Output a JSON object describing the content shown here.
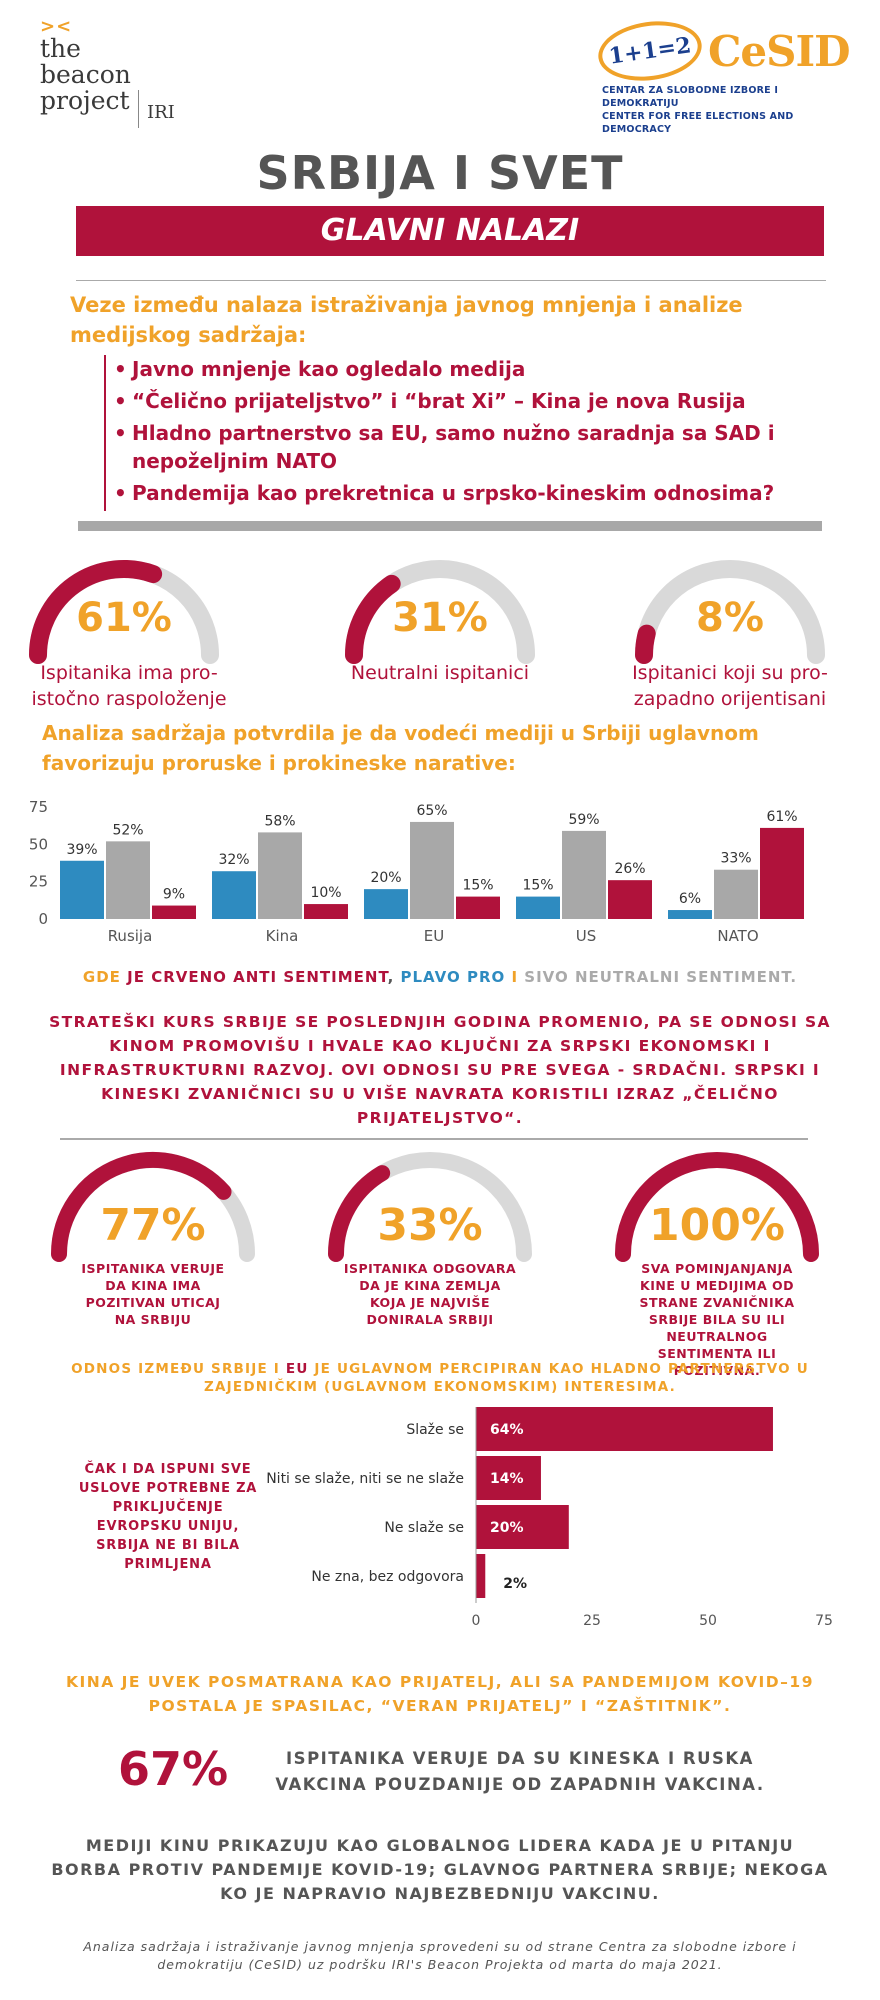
{
  "logos": {
    "beacon_marks": "><",
    "beacon_line1": "the",
    "beacon_line2": "beacon",
    "beacon_line3": "project",
    "iri": "IRI",
    "cesid_oval": "1+1=2",
    "cesid_name": "CeSID",
    "cesid_sub1": "CENTAR ZA SLOBODNE IZBORE I DEMOKRATIJU",
    "cesid_sub2": "CENTER FOR FREE ELECTIONS AND DEMOCRACY"
  },
  "title": "SRBIJA I SVET",
  "subtitle": "GLAVNI NALAZI",
  "intro": "Veze između nalaza istraživanja javnog mnjenja i analize medijskog sadržaja:",
  "bullets": [
    "Javno mnjenje kao ogledalo medija",
    "“Čelično prijateljstvo” i “brat Xi” – Kina je nova Rusija",
    "Hladno partnerstvo sa EU, samo nužno saradnja sa SAD i nepoželjnim NATO",
    "Pandemija kao prekretnica u srpsko-kineskim odnosima?"
  ],
  "gauges_top": [
    {
      "value": 61,
      "label": "61%",
      "caption": "Ispitanika ima pro-istočno raspoloženje"
    },
    {
      "value": 31,
      "label": "31%",
      "caption": "Neutralni ispitanici"
    },
    {
      "value": 8,
      "label": "8%",
      "caption": "Ispitanici koji su pro-zapadno orijentisani"
    }
  ],
  "analiza": "Analiza sadržaja potvrdila je da vodeći mediji u Srbiji uglavnom favorizuju proruske i prokineske narative:",
  "chart_data": [
    {
      "type": "bar",
      "categories": [
        "Rusija",
        "Kina",
        "EU",
        "US",
        "NATO"
      ],
      "series": [
        {
          "values": [
            39,
            32,
            20,
            15,
            6
          ]
        },
        {
          "values": [
            52,
            58,
            65,
            59,
            33
          ]
        },
        {
          "values": [
            9,
            10,
            15,
            26,
            61
          ]
        }
      ],
      "data_labels": [
        [
          "39%",
          "52%",
          "9%"
        ],
        [
          "32%",
          "58%",
          "10%"
        ],
        [
          "20%",
          "65%",
          "15%"
        ],
        [
          "15%",
          "59%",
          "26%"
        ],
        [
          "6%",
          "33%",
          "61%"
        ]
      ],
      "ylim": [
        0,
        75
      ],
      "yticks": [
        "0",
        "25",
        "50",
        "75"
      ],
      "grid": false
    },
    {
      "type": "bar",
      "orientation": "horizontal",
      "categories": [
        "Slaže se",
        "Niti se slaže, niti se ne slaže",
        "Ne slaže se",
        "Ne zna, bez odgovora"
      ],
      "values": [
        64,
        14,
        20,
        2
      ],
      "data_labels": [
        "64%",
        "14%",
        "20%",
        "2%"
      ],
      "xlim": [
        0,
        75
      ],
      "xticks": [
        "0",
        "25",
        "50",
        "75"
      ],
      "grid": false
    }
  ],
  "legend": {
    "part1": "GDE ",
    "part2": "JE CRVENO ANTI SENTIMENT",
    "part3": ", ",
    "part4": "PLAVO PRO",
    "part5": " I ",
    "part6": "SIVO NEUTRALNI SENTIMENT."
  },
  "strateski": "STRATEŠKI KURS SRBIJE SE POSLEDNJIH GODINA PROMENIO, PA SE ODNOSI SA KINOM PROMOVIŠU I HVALE KAO KLJUČNI ZA SRPSKI EKONOMSKI I INFRASTRUKTURNI RAZVOJ. OVI ODNOSI SU PRE SVEGA - SRDAČNI. SRPSKI I KINESKI ZVANIČNICI SU U VIŠE NAVRATA KORISTILI IZRAZ „ČELIČNO PRIJATELJSTVO“.",
  "gauges_mid": [
    {
      "value": 77,
      "label": "77%",
      "caption": "ISPITANIKA VERUJE DA KINA IMA POZITIVAN UTICAJ NA SRBIJU"
    },
    {
      "value": 33,
      "label": "33%",
      "caption": "ISPITANIKA ODGOVARA DA JE KINA ZEMLJA KOJA JE NAJVIŠE DONIRALA SRBIJI"
    },
    {
      "value": 100,
      "label": "100%",
      "caption": "SVA POMINJANJANJA KINE U MEDIJIMA OD STRANE ZVANIČNIKA SRBIJE BILA SU ILI NEUTRALNOG SENTIMENTA ILI POZITIVNA."
    }
  ],
  "odnos": {
    "part1": "ODNOS  IZMEĐU SRBIJE I ",
    "part2": "EU",
    "part3": " JE UGLAVNOM PERCIPIRAN KAO HLADNO PARTNERSTVO U ZAJEDNIČKIM (UGLAVNOM EKONOMSKIM) INTERESIMA."
  },
  "cak": "ČAK I DA ISPUNI SVE USLOVE POTREBNE ZA PRIKLJUČENJE EVROPSKU UNIJU, SRBIJA NE BI BILA PRIMLJENA",
  "kina": "KINA JE UVEK POSMATRANA KAO PRIJATELJ, ALI SA PANDEMIJOM KOVID–19 POSTALA JE SPASILAC, “VERAN PRIJATELJ” I “ZAŠTITNIK”.",
  "big67": "67%",
  "vakcina": "ISPITANIKA VERUJE DA SU KINESKA I RUSKA VAKCINA POUZDANIJE OD ZAPADNIH VAKCINA.",
  "mediji": "MEDIJI KINU PRIKAZUJU KAO GLOBALNOG LIDERA KADA JE U PITANJU BORBA PROTIV PANDEMIJE KOVID-19; GLAVNOG PARTNERA SRBIJE; NEKOGA KO JE NAPRAVIO NAJBEZBEDNIJU VAKCINU.",
  "footer": "Analiza sadržaja i istraživanje javnog mnjenja sprovedeni su od strane Centra za slobodne izbore i demokratiju (CeSID) uz podršku IRI's Beacon Projekta od marta do maja 2021.",
  "colors": {
    "crimson": "#b0123b",
    "orange": "#f0a229",
    "blue": "#2e8bc0",
    "gray": "#a8a8a8",
    "track": "#d9d9d9"
  }
}
